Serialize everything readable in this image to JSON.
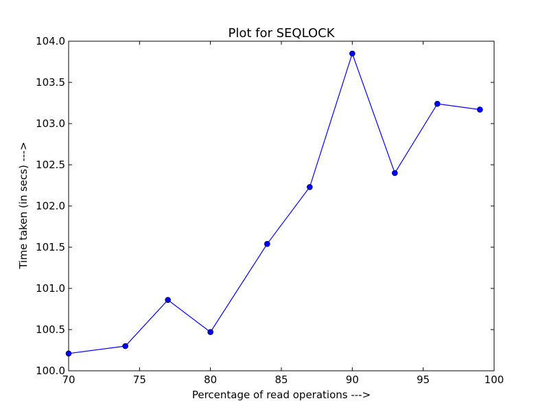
{
  "chart_data": {
    "type": "line",
    "title": "Plot for SEQLOCK",
    "xlabel": "Percentage of read operations --->",
    "ylabel": "Time taken (in secs) --->",
    "xlim": [
      70,
      100
    ],
    "ylim": [
      100.0,
      104.0
    ],
    "xticks": [
      70,
      75,
      80,
      85,
      90,
      95,
      100
    ],
    "yticks": [
      100.0,
      100.5,
      101.0,
      101.5,
      102.0,
      102.5,
      103.0,
      103.5,
      104.0
    ],
    "xtick_labels": [
      "70",
      "75",
      "80",
      "85",
      "90",
      "95",
      "100"
    ],
    "ytick_labels": [
      "100.0",
      "100.5",
      "101.0",
      "101.5",
      "102.0",
      "102.5",
      "103.0",
      "103.5",
      "104.0"
    ],
    "grid": false,
    "series": [
      {
        "color": "#0000ff",
        "marker": "circle",
        "x": [
          70,
          74,
          77,
          80,
          84,
          87,
          90,
          93,
          96,
          99
        ],
        "y": [
          100.21,
          100.3,
          100.86,
          100.47,
          101.54,
          102.23,
          103.85,
          102.4,
          103.24,
          103.17
        ]
      }
    ]
  }
}
